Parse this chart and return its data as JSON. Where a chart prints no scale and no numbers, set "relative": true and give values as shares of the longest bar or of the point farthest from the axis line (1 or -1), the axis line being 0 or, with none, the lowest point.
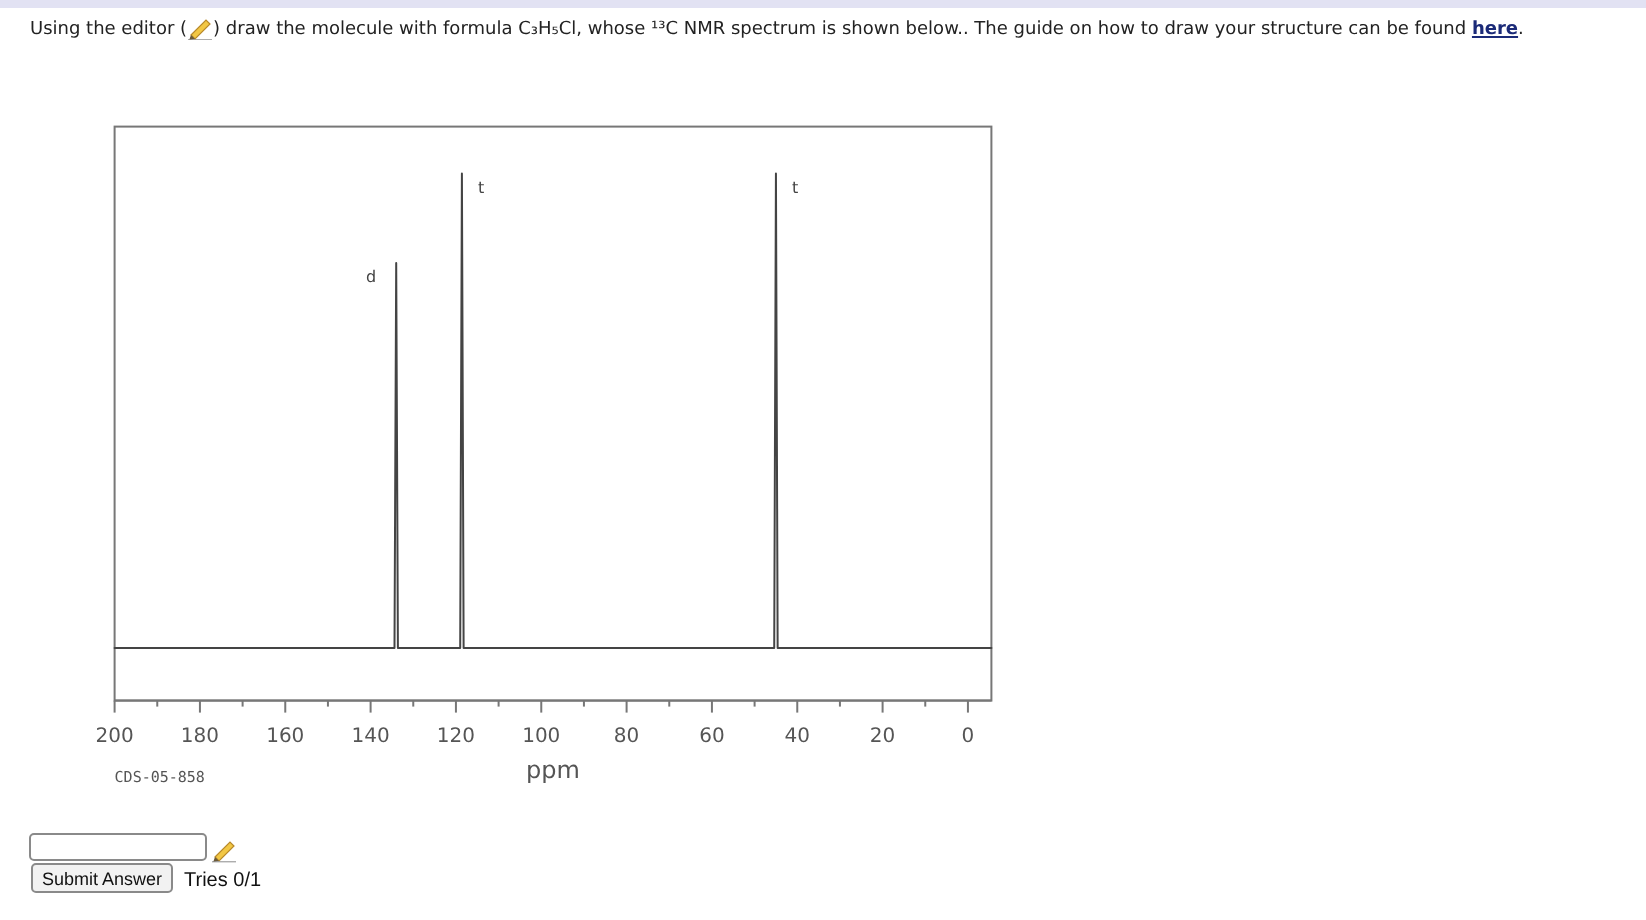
{
  "chart_data": {
    "type": "line",
    "title": "Using the editor ( ) draw the molecule with formula C₃H₅Cl, whose ¹³C NMR spectrum is shown below.. The guide on how to draw your structure can be found here.",
    "xlabel": "ppm",
    "annotations": [
      "CDS-05-858",
      "Submit Answer",
      "Tries 0/1",
      {
        "text": "d",
        "x": 134,
        "y": 0.83
      },
      {
        "text": "t",
        "x": 118.6,
        "y": 1
      },
      {
        "text": "t",
        "x": 45,
        "y": 1
      }
    ],
    "relative": true,
    "x": [
      200,
      134.4,
      134,
      133.6,
      119,
      118.6,
      118.2,
      45.4,
      45,
      44.6,
      -5.5
    ],
    "values": [
      0.1,
      0.1,
      0.83,
      0.1,
      0.1,
      1,
      0.1,
      0.1,
      1,
      0.1,
      0.1
    ],
    "color": "#444444",
    "xlim": [
      200,
      -5.5
    ],
    "xticks": [
      200,
      {
        "value": 190,
        "label": null
      },
      180,
      {
        "value": 170,
        "label": null
      },
      160,
      {
        "value": 150,
        "label": null
      },
      140,
      {
        "value": 130,
        "label": null
      },
      120,
      {
        "value": 110,
        "label": null
      },
      100,
      {
        "value": 90,
        "label": null
      },
      80,
      {
        "value": 70,
        "label": null
      },
      60,
      {
        "value": 50,
        "label": null
      },
      40,
      {
        "value": 30,
        "label": null
      },
      20,
      {
        "value": 10,
        "label": null
      },
      0
    ]
  }
}
